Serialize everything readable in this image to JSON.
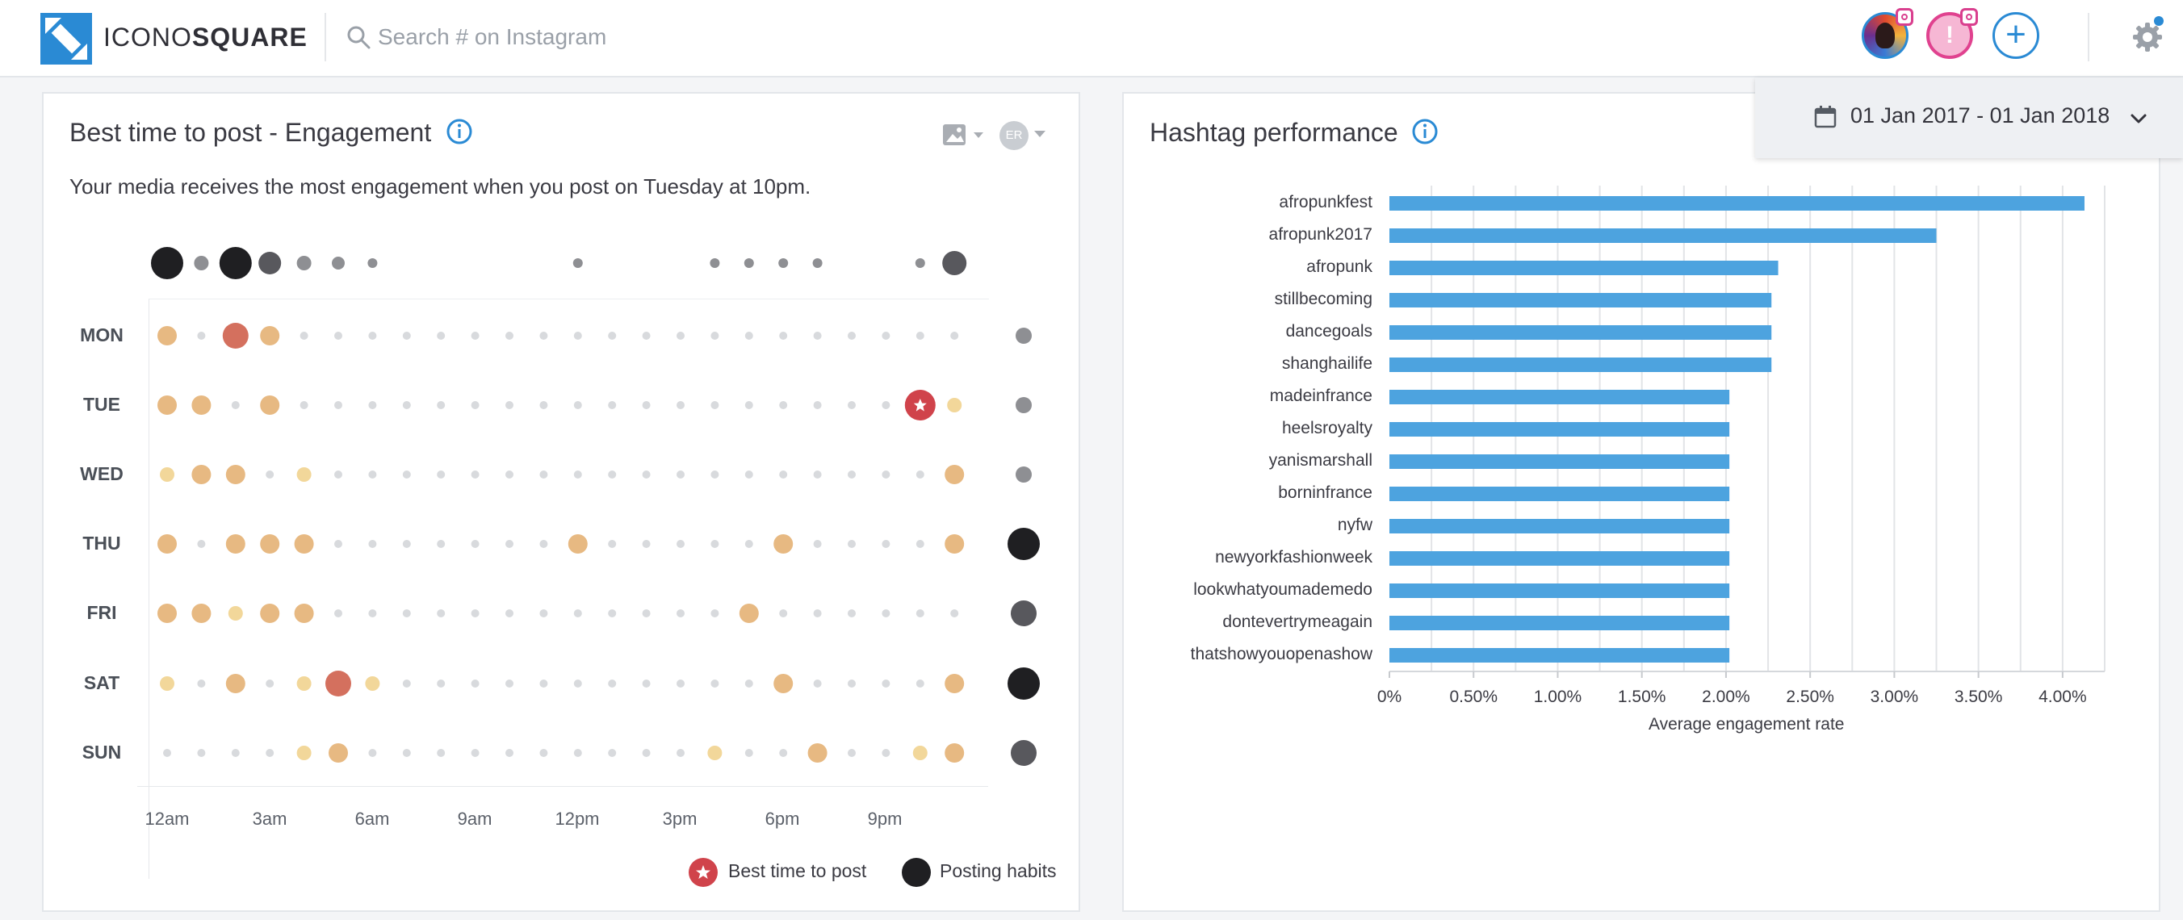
{
  "header": {
    "brand_prefix": "ICONO",
    "brand_suffix": "SQUARE",
    "search_placeholder": "Search # on Instagram",
    "add_label": "+"
  },
  "date_range": "01 Jan 2017 - 01 Jan 2018",
  "best_time": {
    "title": "Best time to post - Engagement",
    "subtitle": "Your media receives the most engagement when you post on Tuesday at 10pm.",
    "er_label": "ER",
    "days": [
      "MON",
      "TUE",
      "WED",
      "THU",
      "FRI",
      "SAT",
      "SUN"
    ],
    "hour_labels": [
      "12am",
      "3am",
      "6am",
      "9am",
      "12pm",
      "3pm",
      "6pm",
      "9pm"
    ],
    "legend_best": "Best time to post",
    "legend_habits": "Posting habits"
  },
  "chart_data": {
    "type": "bar",
    "title": "Hashtag performance",
    "xlabel": "Average engagement rate",
    "ylabel": "",
    "orientation": "horizontal",
    "categories": [
      "afropunkfest",
      "afropunk2017",
      "afropunk",
      "stillbecoming",
      "dancegoals",
      "shanghailife",
      "madeinfrance",
      "heelsroyalty",
      "yanismarshall",
      "borninfrance",
      "nyfw",
      "newyorkfashionweek",
      "lookwhatyoumademedo",
      "dontevertrymeagain",
      "thatshowyouopenashow"
    ],
    "values": [
      4.13,
      3.25,
      2.31,
      2.27,
      2.27,
      2.27,
      2.02,
      2.02,
      2.02,
      2.02,
      2.02,
      2.02,
      2.02,
      2.02,
      2.02
    ],
    "xlim": [
      0,
      4.25
    ],
    "tick_labels": [
      "0%",
      "0.50%",
      "1.00%",
      "1.50%",
      "2.00%",
      "2.50%",
      "3.00%",
      "3.50%",
      "4.00%"
    ],
    "bar_color": "#4da3df"
  },
  "colors": {
    "accent": "#2a8ad4",
    "best": "#d0434b",
    "dot_strong": "#e7b982",
    "dot_light": "#f2d79a",
    "dot_empty": "#d8dadd",
    "habit": "#1f1f22"
  }
}
